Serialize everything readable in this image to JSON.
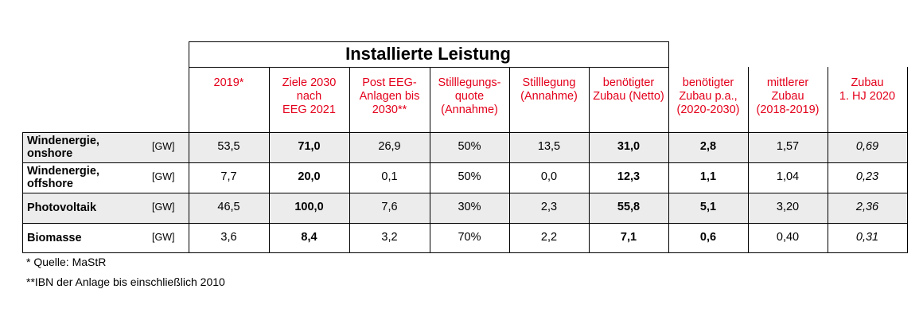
{
  "title": "Installierte Leistung",
  "headers": [
    "2019*",
    "Ziele 2030 nach EEG 2021",
    "Post EEG-Anlagen bis 2030**",
    "Stilllegungs-quote (Annahme)",
    "Stilllegung (Annahme)",
    "benötigter Zubau (Netto)",
    "benötigter Zubau p.a., (2020-2030)",
    "mittlerer Zubau (2018-2019)",
    "Zubau 1. HJ 2020"
  ],
  "header_lines": [
    [
      "2019*"
    ],
    [
      "Ziele 2030",
      "nach",
      "EEG 2021"
    ],
    [
      "Post EEG-",
      "Anlagen bis",
      "2030**"
    ],
    [
      "Stilllegungs-",
      "quote",
      "(Annahme)"
    ],
    [
      "Stilllegung",
      "(Annahme)"
    ],
    [
      "benötigter",
      "Zubau (Netto)"
    ],
    [
      "benötigter",
      "Zubau p.a.,",
      "(2020-2030)"
    ],
    [
      "mittlerer",
      "Zubau",
      "(2018-2019)"
    ],
    [
      "Zubau",
      "1. HJ 2020"
    ]
  ],
  "rows": [
    {
      "label_lines": [
        "Windenergie,",
        "onshore"
      ],
      "unit": "[GW]",
      "values": [
        "53,5",
        "71,0",
        "26,9",
        "50%",
        "13,5",
        "31,0",
        "2,8",
        "1,57",
        "0,69"
      ]
    },
    {
      "label_lines": [
        "Windenergie,",
        "offshore"
      ],
      "unit": "[GW]",
      "values": [
        "7,7",
        "20,0",
        "0,1",
        "50%",
        "0,0",
        "12,3",
        "1,1",
        "1,04",
        "0,23"
      ]
    },
    {
      "label_lines": [
        "Photovoltaik"
      ],
      "unit": "[GW]",
      "values": [
        "46,5",
        "100,0",
        "7,6",
        "30%",
        "2,3",
        "55,8",
        "5,1",
        "3,20",
        "2,36"
      ]
    },
    {
      "label_lines": [
        "Biomasse"
      ],
      "unit": "[GW]",
      "values": [
        "3,6",
        "8,4",
        "3,2",
        "70%",
        "2,2",
        "7,1",
        "0,6",
        "0,40",
        "0,31"
      ]
    }
  ],
  "footnotes": [
    "* Quelle: MaStR",
    "**IBN der Anlage bis einschließlich 2010"
  ],
  "colors": {
    "header_text": "#e3001b",
    "shaded_row": "#ececec"
  }
}
